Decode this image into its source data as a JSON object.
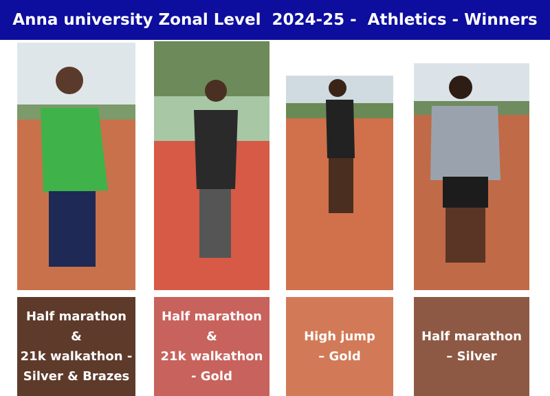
{
  "header": {
    "title": "Anna university Zonal Level  2024-25 -  Athletics - Winners"
  },
  "winners": [
    {
      "caption_lines": [
        "Half marathon",
        "&",
        "21k walkathon -",
        "Silver & Brazes"
      ]
    },
    {
      "caption_lines": [
        "Half marathon",
        "&",
        "21k walkathon",
        "- Gold"
      ]
    },
    {
      "caption_lines": [
        "High jump",
        "– Gold"
      ]
    },
    {
      "caption_lines": [
        "Half marathon",
        "– Silver"
      ]
    }
  ]
}
